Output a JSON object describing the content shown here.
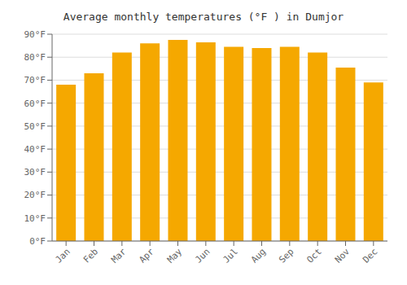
{
  "chart_data": {
    "type": "bar",
    "title": "Average monthly temperatures (°F ) in Dumjor",
    "categories": [
      "Jan",
      "Feb",
      "Mar",
      "Apr",
      "May",
      "Jun",
      "Jul",
      "Aug",
      "Sep",
      "Oct",
      "Nov",
      "Dec"
    ],
    "values": [
      68,
      73,
      82,
      86,
      87.5,
      86.5,
      84.5,
      84,
      84.5,
      82,
      75.5,
      69
    ],
    "color": "#F5A800",
    "ylim": [
      0,
      90
    ],
    "yticks": [
      {
        "value": 0,
        "label": "0°F"
      },
      {
        "value": 10,
        "label": "10°F"
      },
      {
        "value": 20,
        "label": "20°F"
      },
      {
        "value": 30,
        "label": "30°F"
      },
      {
        "value": 40,
        "label": "40°F"
      },
      {
        "value": 50,
        "label": "50°F"
      },
      {
        "value": 60,
        "label": "60°F"
      },
      {
        "value": 70,
        "label": "70°F"
      },
      {
        "value": 80,
        "label": "80°F"
      },
      {
        "value": 90,
        "label": "90°F"
      }
    ],
    "grid": true
  }
}
